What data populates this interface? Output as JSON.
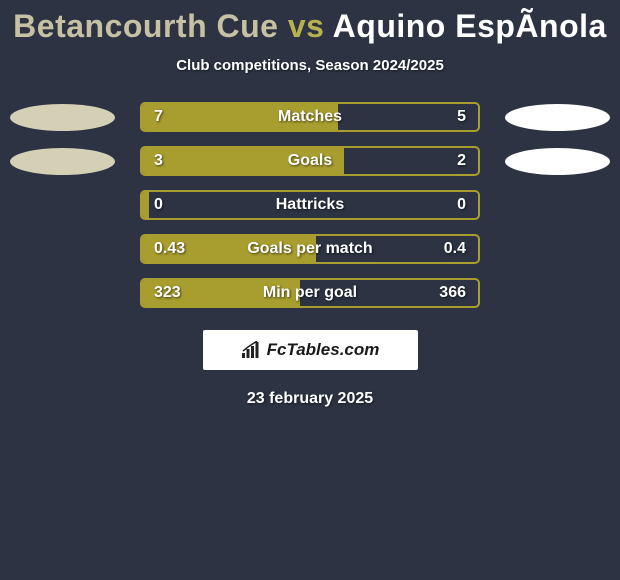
{
  "title": {
    "player1": "Betancourth Cue",
    "vs": "vs",
    "player2": "Aquino EspÃnola",
    "player1_color": "#c7c1a3",
    "vs_color": "#b9b14f",
    "player2_color": "#ffffff"
  },
  "subtitle": "Club competitions, Season 2024/2025",
  "background_color": "#2d3343",
  "left_ellipse_color": "#d4d0b5",
  "right_ellipse_color": "#ffffff",
  "bar_border_color": "#a89d2f",
  "bar_left_fill_color": "#a89d2f",
  "bar_right_fill_color": "transparent",
  "stats": [
    {
      "label": "Matches",
      "left_val": "7",
      "right_val": "5",
      "left_pct": 58.3,
      "right_pct": 0,
      "show_ellipses": true
    },
    {
      "label": "Goals",
      "left_val": "3",
      "right_val": "2",
      "left_pct": 60,
      "right_pct": 0,
      "show_ellipses": true
    },
    {
      "label": "Hattricks",
      "left_val": "0",
      "right_val": "0",
      "left_pct": 2,
      "right_pct": 0,
      "show_ellipses": false
    },
    {
      "label": "Goals per match",
      "left_val": "0.43",
      "right_val": "0.4",
      "left_pct": 51.8,
      "right_pct": 0,
      "show_ellipses": false
    },
    {
      "label": "Min per goal",
      "left_val": "323",
      "right_val": "366",
      "left_pct": 46.9,
      "right_pct": 0,
      "show_ellipses": false
    }
  ],
  "branding": "FcTables.com",
  "date": "23 february 2025"
}
